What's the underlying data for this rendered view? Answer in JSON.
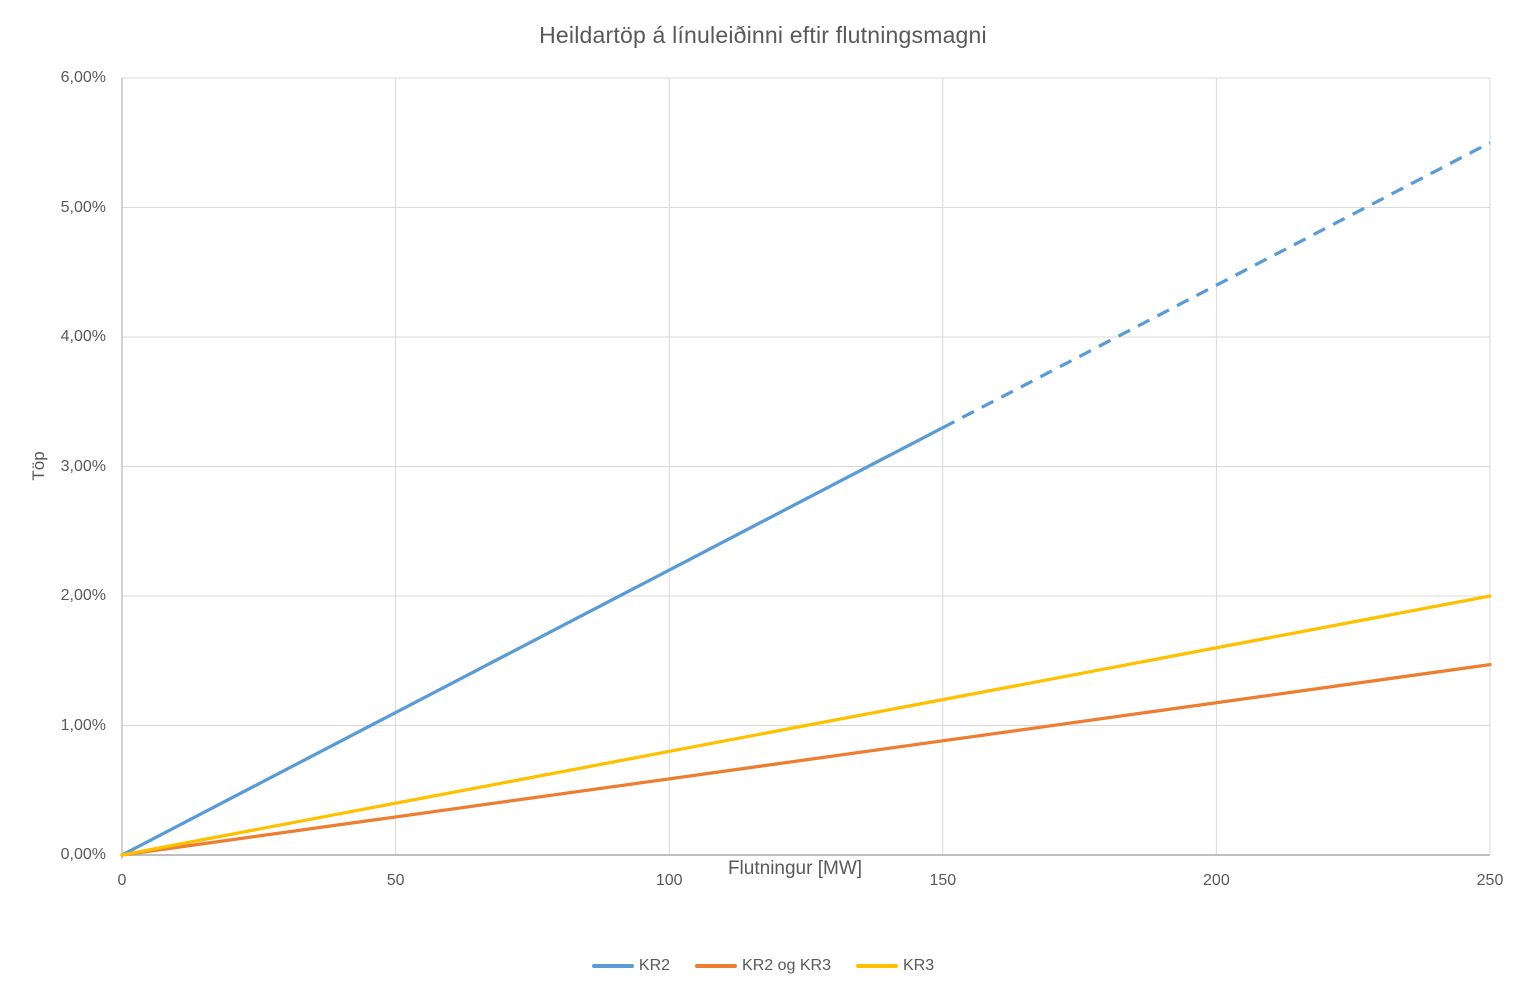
{
  "chart_data": {
    "type": "line",
    "title": "Heildartöp á línuleiðinni eftir flutningsmagni",
    "xlabel": "Flutningur [MW]",
    "ylabel": "Töp",
    "xlim": [
      0,
      250
    ],
    "ylim": [
      0,
      0.06
    ],
    "x_ticks": [
      0,
      50,
      100,
      150,
      200,
      250
    ],
    "x_tick_labels": [
      "0",
      "50",
      "100",
      "150",
      "200",
      "250"
    ],
    "y_ticks": [
      0,
      0.01,
      0.02,
      0.03,
      0.04,
      0.05,
      0.06
    ],
    "y_tick_labels": [
      "0,00%",
      "1,00%",
      "2,00%",
      "3,00%",
      "4,00%",
      "5,00%",
      "6,00%"
    ],
    "grid": true,
    "legend_position": "bottom-center",
    "series": [
      {
        "name": "KR2",
        "color": "#5B9BD5",
        "segments": [
          {
            "style": "solid",
            "points": [
              [
                0,
                0.0
              ],
              [
                150,
                0.033
              ]
            ]
          },
          {
            "style": "dashed",
            "points": [
              [
                150,
                0.033
              ],
              [
                250,
                0.055
              ]
            ]
          }
        ]
      },
      {
        "name": "KR2 og KR3",
        "color": "#ED7D31",
        "segments": [
          {
            "style": "solid",
            "points": [
              [
                0,
                0.0
              ],
              [
                250,
                0.0147
              ]
            ]
          }
        ]
      },
      {
        "name": "KR3",
        "color": "#FFC000",
        "segments": [
          {
            "style": "solid",
            "points": [
              [
                0,
                0.0
              ],
              [
                250,
                0.02
              ]
            ]
          }
        ]
      }
    ],
    "styles": {
      "grid_color": "#D9D9D9",
      "axis_color": "#BFBFBF",
      "text_color": "#595959",
      "line_width": 3.25,
      "dash_pattern": "13 9"
    }
  }
}
